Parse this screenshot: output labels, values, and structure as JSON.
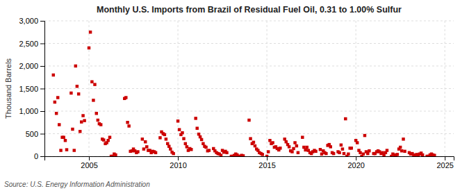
{
  "chart_data": {
    "type": "scatter",
    "title": "Monthly U.S. Imports from Brazil of Residual Fuel Oil, 0.31 to 1.00% Sulfur",
    "ylabel": "Thousand Barrels",
    "annotations": [
      "Source: U.S. Energy Information Administration"
    ],
    "color": "#cc0000",
    "marker": "square",
    "grid": true,
    "xlim": [
      2002.5,
      2025.5
    ],
    "xticks": [
      2005,
      2010,
      2015,
      2020,
      2025
    ],
    "ylim": [
      0,
      3000
    ],
    "yticks": [
      0,
      500,
      {
        "value": 1000,
        "label": "1,000"
      },
      {
        "value": 1500,
        "label": "1,500"
      },
      {
        "value": 2000,
        "label": "2,000"
      },
      {
        "value": 2500,
        "label": "2,500"
      },
      {
        "value": 3000,
        "label": "3,000"
      }
    ],
    "x": [
      2003.0,
      2003.08,
      2003.17,
      2003.25,
      2003.33,
      2003.42,
      2003.5,
      2003.58,
      2003.67,
      2003.75,
      2004.0,
      2004.08,
      2004.17,
      2004.25,
      2004.33,
      2004.42,
      2004.5,
      2004.58,
      2004.67,
      2004.75,
      2005.0,
      2005.08,
      2005.17,
      2005.25,
      2005.33,
      2005.42,
      2005.5,
      2005.58,
      2005.67,
      2005.75,
      2005.83,
      2005.92,
      2006.0,
      2006.08,
      2006.17,
      2006.25,
      2006.33,
      2006.42,
      2006.5,
      2007.0,
      2007.08,
      2007.17,
      2007.25,
      2007.33,
      2007.42,
      2007.5,
      2007.58,
      2007.67,
      2007.75,
      2008.0,
      2008.08,
      2008.17,
      2008.25,
      2008.33,
      2008.42,
      2008.5,
      2008.58,
      2008.67,
      2008.75,
      2009.0,
      2009.08,
      2009.17,
      2009.25,
      2009.33,
      2009.42,
      2009.5,
      2009.58,
      2009.67,
      2009.75,
      2010.0,
      2010.08,
      2010.17,
      2010.25,
      2010.33,
      2010.42,
      2010.5,
      2010.58,
      2010.67,
      2010.75,
      2011.0,
      2011.08,
      2011.17,
      2011.25,
      2011.33,
      2011.42,
      2011.5,
      2011.58,
      2011.67,
      2011.75,
      2012.0,
      2012.08,
      2012.17,
      2012.25,
      2012.33,
      2012.42,
      2012.5,
      2012.58,
      2012.67,
      2012.75,
      2013.0,
      2013.08,
      2013.17,
      2013.25,
      2013.33,
      2013.42,
      2013.5,
      2013.58,
      2013.67,
      2014.0,
      2014.08,
      2014.17,
      2014.25,
      2014.33,
      2014.42,
      2014.5,
      2014.58,
      2014.67,
      2014.75,
      2015.0,
      2015.08,
      2015.17,
      2015.25,
      2015.33,
      2015.42,
      2015.5,
      2015.58,
      2015.67,
      2015.75,
      2016.0,
      2016.08,
      2016.17,
      2016.25,
      2016.33,
      2016.42,
      2016.5,
      2016.58,
      2016.67,
      2016.75,
      2017.0,
      2017.08,
      2017.17,
      2017.25,
      2017.33,
      2017.42,
      2017.5,
      2017.58,
      2017.67,
      2017.75,
      2018.0,
      2018.08,
      2018.17,
      2018.25,
      2018.33,
      2018.42,
      2018.5,
      2018.58,
      2018.67,
      2018.75,
      2019.0,
      2019.08,
      2019.17,
      2019.25,
      2019.33,
      2019.42,
      2019.5,
      2019.58,
      2019.67,
      2019.75,
      2020.0,
      2020.08,
      2020.17,
      2020.25,
      2020.33,
      2020.42,
      2020.5,
      2020.58,
      2020.67,
      2020.75,
      2021.0,
      2021.08,
      2021.17,
      2021.25,
      2021.33,
      2021.42,
      2021.5,
      2021.58,
      2021.67,
      2021.75,
      2022.0,
      2022.08,
      2022.17,
      2022.25,
      2022.33,
      2022.42,
      2022.5,
      2022.58,
      2022.67,
      2022.75,
      2023.0,
      2023.08,
      2023.17,
      2023.25,
      2023.33,
      2023.42,
      2023.5,
      2023.58,
      2023.67,
      2023.75,
      2024.0,
      2024.08,
      2024.17,
      2024.25,
      2024.33,
      2024.42
    ],
    "values": [
      1800,
      1200,
      950,
      1300,
      700,
      130,
      420,
      420,
      350,
      145,
      1400,
      600,
      130,
      2000,
      1550,
      1380,
      550,
      760,
      900,
      790,
      2400,
      2750,
      1650,
      1240,
      1590,
      950,
      800,
      720,
      700,
      380,
      360,
      280,
      300,
      350,
      420,
      0,
      0,
      50,
      30,
      1280,
      1300,
      750,
      670,
      110,
      120,
      160,
      120,
      80,
      100,
      380,
      160,
      320,
      210,
      130,
      130,
      80,
      110,
      100,
      80,
      410,
      540,
      500,
      480,
      380,
      280,
      220,
      160,
      90,
      60,
      780,
      590,
      480,
      520,
      390,
      280,
      210,
      130,
      170,
      150,
      840,
      620,
      490,
      430,
      370,
      280,
      220,
      200,
      120,
      130,
      170,
      120,
      80,
      60,
      50,
      20,
      130,
      90,
      110,
      80,
      0,
      0,
      20,
      50,
      30,
      0,
      0,
      20,
      10,
      800,
      390,
      280,
      310,
      230,
      160,
      130,
      80,
      60,
      40,
      0,
      100,
      350,
      280,
      300,
      200,
      210,
      170,
      140,
      180,
      380,
      320,
      260,
      210,
      120,
      100,
      170,
      300,
      230,
      80,
      420,
      200,
      140,
      200,
      130,
      80,
      60,
      100,
      130,
      110,
      150,
      50,
      120,
      80,
      60,
      240,
      260,
      210,
      80,
      60,
      100,
      80,
      250,
      160,
      60,
      830,
      0,
      50,
      180,
      180,
      350,
      300,
      130,
      80,
      0,
      50,
      460,
      100,
      60,
      120,
      60,
      60,
      100,
      120,
      100,
      60,
      80,
      30,
      80,
      130,
      0,
      50,
      30,
      0,
      40,
      160,
      200,
      120,
      380,
      110,
      80,
      50,
      60,
      30,
      20,
      40,
      0,
      50,
      70,
      30,
      0,
      0,
      30,
      50,
      30,
      20
    ]
  }
}
